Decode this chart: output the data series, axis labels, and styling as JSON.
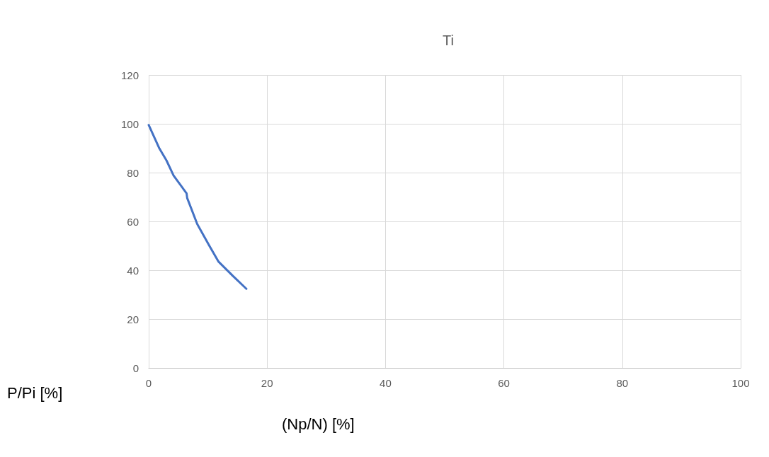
{
  "chart_data": {
    "type": "line",
    "title": "Ti",
    "xlabel": "(Np/N) [%]",
    "ylabel": "P/Pi [%]",
    "series": [
      {
        "color": "#4472c4",
        "x": [
          0,
          1.8,
          3.0,
          4.2,
          6.4,
          6.5,
          8.2,
          10.2,
          11.8,
          14.2,
          16.5
        ],
        "values": [
          99.5,
          89.9,
          85,
          78.8,
          71.5,
          69.6,
          58.9,
          50.2,
          43.5,
          37.7,
          32.4
        ]
      }
    ],
    "xlim": [
      0,
      100
    ],
    "xticks": [
      0,
      20,
      40,
      60,
      80,
      100
    ],
    "ylim": [
      0,
      120
    ],
    "yticks": [
      0,
      20,
      40,
      60,
      80,
      100,
      120
    ],
    "grid": true,
    "marker": "none",
    "line_style": "solid"
  }
}
